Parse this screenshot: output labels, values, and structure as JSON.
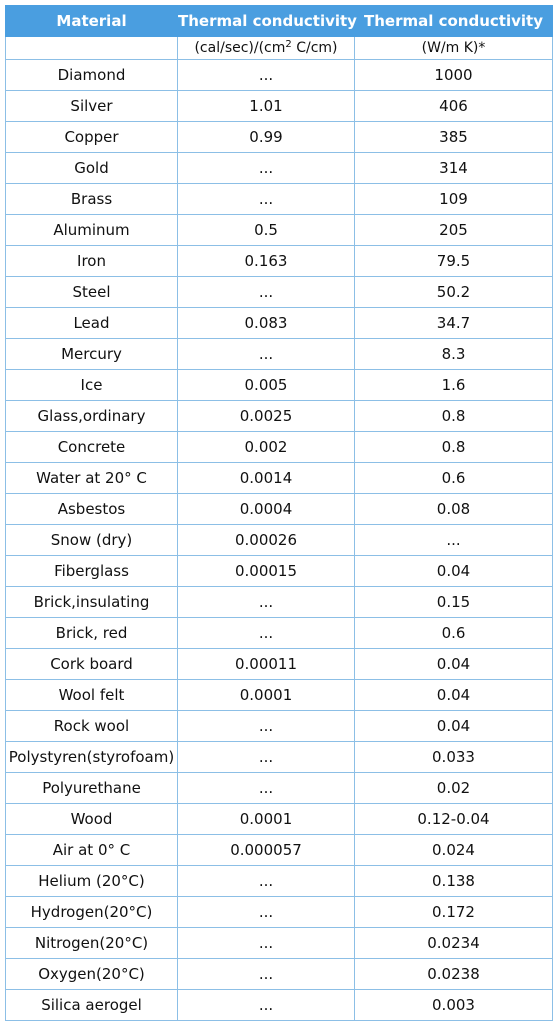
{
  "header": {
    "col1": "Material",
    "col2": "Thermal conductivity",
    "col3": "Thermal conductivity"
  },
  "units": {
    "col1": "",
    "col2_pre": "(cal/sec)/(cm",
    "col2_sup": "2",
    "col2_post": " C/cm)",
    "col3": "(W/m K)*"
  },
  "rows": [
    {
      "material": "Diamond",
      "cal": "...",
      "w": "1000"
    },
    {
      "material": "Silver",
      "cal": "1.01",
      "w": "406"
    },
    {
      "material": "Copper",
      "cal": "0.99",
      "w": "385"
    },
    {
      "material": "Gold",
      "cal": "...",
      "w": "314"
    },
    {
      "material": "Brass",
      "cal": "...",
      "w": "109"
    },
    {
      "material": "Aluminum",
      "cal": "0.5",
      "w": "205"
    },
    {
      "material": "Iron",
      "cal": "0.163",
      "w": "79.5"
    },
    {
      "material": "Steel",
      "cal": "...",
      "w": "50.2"
    },
    {
      "material": "Lead",
      "cal": "0.083",
      "w": "34.7"
    },
    {
      "material": "Mercury",
      "cal": "...",
      "w": "8.3"
    },
    {
      "material": "Ice",
      "cal": "0.005",
      "w": "1.6"
    },
    {
      "material": "Glass,ordinary",
      "cal": "0.0025",
      "w": "0.8"
    },
    {
      "material": "Concrete",
      "cal": "0.002",
      "w": "0.8"
    },
    {
      "material": "Water at 20° C",
      "cal": "0.0014",
      "w": "0.6"
    },
    {
      "material": "Asbestos",
      "cal": "0.0004",
      "w": "0.08"
    },
    {
      "material": "Snow (dry)",
      "cal": "0.00026",
      "w": "..."
    },
    {
      "material": "Fiberglass",
      "cal": "0.00015",
      "w": "0.04"
    },
    {
      "material": "Brick,insulating",
      "cal": "...",
      "w": "0.15"
    },
    {
      "material": "Brick, red",
      "cal": "...",
      "w": "0.6"
    },
    {
      "material": "Cork board",
      "cal": "0.00011",
      "w": "0.04"
    },
    {
      "material": "Wool felt",
      "cal": "0.0001",
      "w": "0.04"
    },
    {
      "material": "Rock wool",
      "cal": "...",
      "w": "0.04"
    },
    {
      "material": "Polystyren(styrofoam)",
      "cal": "...",
      "w": "0.033"
    },
    {
      "material": "Polyurethane",
      "cal": "...",
      "w": "0.02"
    },
    {
      "material": "Wood",
      "cal": "0.0001",
      "w": "0.12-0.04"
    },
    {
      "material": "Air at 0° C",
      "cal": "0.000057",
      "w": "0.024"
    },
    {
      "material": "Helium (20°C)",
      "cal": "...",
      "w": "0.138"
    },
    {
      "material": "Hydrogen(20°C)",
      "cal": "...",
      "w": "0.172"
    },
    {
      "material": "Nitrogen(20°C)",
      "cal": "...",
      "w": "0.0234"
    },
    {
      "material": "Oxygen(20°C)",
      "cal": "...",
      "w": "0.0238"
    },
    {
      "material": "Silica aerogel",
      "cal": "...",
      "w": "0.003"
    }
  ]
}
